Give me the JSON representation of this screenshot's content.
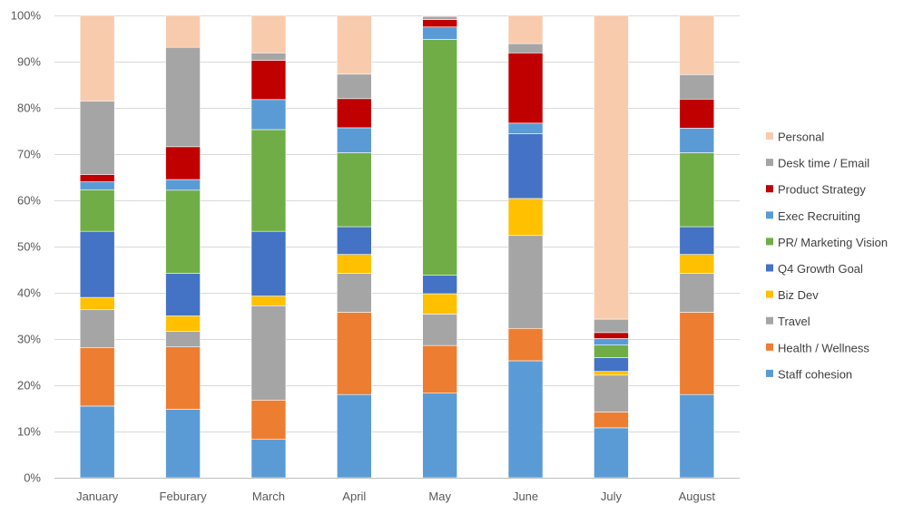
{
  "chart_data": {
    "type": "bar",
    "stacked": true,
    "title": "",
    "xlabel": "",
    "ylabel": "",
    "ylim": [
      0,
      100
    ],
    "y_tick_values": [
      0,
      10,
      20,
      30,
      40,
      50,
      60,
      70,
      80,
      90,
      100
    ],
    "y_tick_suffix": "%",
    "grid": true,
    "legend_position": "right",
    "categories": [
      "January",
      "Feburary",
      "March",
      "April",
      "May",
      "June",
      "July",
      "August"
    ],
    "series": [
      {
        "name": "Staff cohesion",
        "color": "#5b9bd5",
        "values": [
          15.5,
          14.8,
          8.3,
          18.0,
          18.3,
          25.3,
          10.8,
          18.0
        ]
      },
      {
        "name": "Health / Wellness",
        "color": "#ed7d31",
        "values": [
          12.6,
          13.5,
          8.5,
          17.8,
          10.3,
          7.0,
          3.4,
          17.8
        ]
      },
      {
        "name": "Travel",
        "color": "#a5a5a5",
        "values": [
          8.3,
          3.4,
          20.4,
          8.4,
          6.8,
          20.1,
          8.0,
          8.4
        ]
      },
      {
        "name": "Biz Dev",
        "color": "#ffc000",
        "values": [
          2.6,
          3.3,
          2.1,
          4.1,
          4.4,
          8.0,
          0.8,
          4.1
        ]
      },
      {
        "name": "Q4 Growth Goal",
        "color": "#4472c4",
        "values": [
          14.3,
          9.2,
          14.0,
          6.0,
          4.0,
          14.0,
          3.0,
          6.0
        ]
      },
      {
        "name": "PR/ Marketing Vision",
        "color": "#70ad47",
        "values": [
          9.0,
          18.0,
          22.0,
          16.0,
          51.0,
          0.0,
          2.7,
          16.0
        ]
      },
      {
        "name": "Exec Recruiting",
        "color": "#5b9bd5",
        "values": [
          1.7,
          2.3,
          6.5,
          5.4,
          2.7,
          2.3,
          1.4,
          5.3
        ]
      },
      {
        "name": "Product Strategy",
        "color": "#c00000",
        "values": [
          1.6,
          7.1,
          8.5,
          6.3,
          1.6,
          15.2,
          1.3,
          6.3
        ]
      },
      {
        "name": "Desk time / Email",
        "color": "#a5a5a5",
        "values": [
          15.9,
          21.5,
          1.6,
          5.3,
          0.7,
          2.0,
          2.9,
          5.3
        ]
      },
      {
        "name": "Personal",
        "color": "#f8cbad",
        "values": [
          18.5,
          6.9,
          8.1,
          12.7,
          0.2,
          6.1,
          65.7,
          12.8
        ]
      }
    ]
  }
}
